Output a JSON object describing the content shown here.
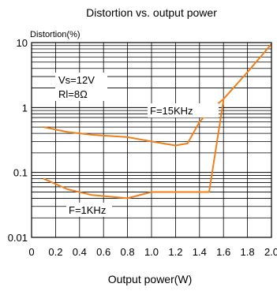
{
  "chart_data": {
    "type": "line",
    "title": "Distortion vs. output power",
    "xlabel": "Output power(W)",
    "ylabel": "Distortion(%)",
    "xscale": "linear",
    "yscale": "log",
    "xlim": [
      0,
      2.0
    ],
    "ylim": [
      0.01,
      10
    ],
    "x_ticks": [
      "0",
      "0.2",
      "0.4",
      "0.6",
      "0.8",
      "1.0",
      "1.2",
      "1.4",
      "1.6",
      "1.8",
      "2.0"
    ],
    "y_ticks": [
      "0.01",
      "0.1",
      "1",
      "10"
    ],
    "grid": true,
    "line_color": "#f07f1c",
    "conditions": [
      "Vs=12V",
      "Rl=8Ω"
    ],
    "series": [
      {
        "name": "F=15KHz",
        "x": [
          0.1,
          0.3,
          0.5,
          0.8,
          1.0,
          1.2,
          1.3,
          1.4,
          1.5,
          1.6,
          1.8,
          2.0
        ],
        "y": [
          0.5,
          0.42,
          0.38,
          0.35,
          0.3,
          0.26,
          0.28,
          0.6,
          0.95,
          1.35,
          3.5,
          9.5
        ]
      },
      {
        "name": "F=1KHz",
        "x": [
          0.1,
          0.3,
          0.5,
          0.8,
          1.0,
          1.2,
          1.4,
          1.48,
          1.6
        ],
        "y": [
          0.08,
          0.055,
          0.045,
          0.04,
          0.05,
          0.05,
          0.05,
          0.05,
          1.3
        ]
      }
    ]
  }
}
